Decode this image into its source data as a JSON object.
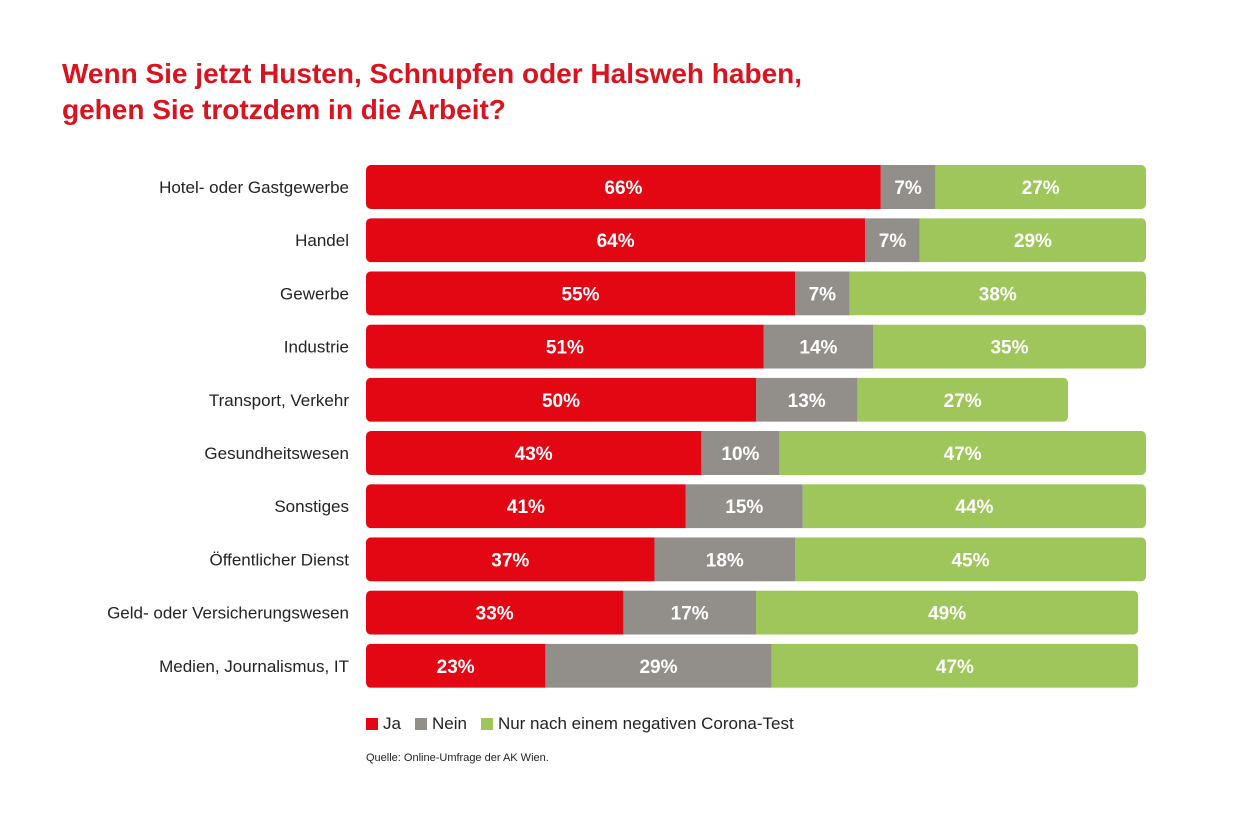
{
  "title_lines": [
    "Wenn Sie jetzt Husten, Schnupfen oder Halsweh haben,",
    "gehen Sie trotzdem in die Arbeit?"
  ],
  "source": "Quelle: Online-Umfrage der AK Wien.",
  "chart_data": {
    "type": "bar",
    "orientation": "horizontal",
    "stacked": true,
    "title": "Wenn Sie jetzt Husten, Schnupfen oder Halsweh haben, gehen Sie trotzdem in die Arbeit?",
    "categories": [
      "Hotel- oder Gastgewerbe",
      "Handel",
      "Gewerbe",
      "Industrie",
      "Transport, Verkehr",
      "Gesundheitswesen",
      "Sonstiges",
      "Öffentlicher Dienst",
      "Geld- oder Versicherungswesen",
      "Medien, Journalismus, IT"
    ],
    "series": [
      {
        "name": "Ja",
        "color": "#e30613",
        "values": [
          66,
          64,
          55,
          51,
          50,
          43,
          41,
          37,
          33,
          23
        ]
      },
      {
        "name": "Nein",
        "color": "#928e8a",
        "values": [
          7,
          7,
          7,
          14,
          13,
          10,
          15,
          18,
          17,
          29
        ]
      },
      {
        "name": "Nur nach einem negativen Corona-Test",
        "color": "#9fc65a",
        "values": [
          27,
          29,
          38,
          35,
          27,
          47,
          44,
          45,
          49,
          47
        ]
      }
    ],
    "value_suffix": "%",
    "xlim": [
      0,
      100
    ],
    "legend_position": "bottom",
    "grid": false
  }
}
